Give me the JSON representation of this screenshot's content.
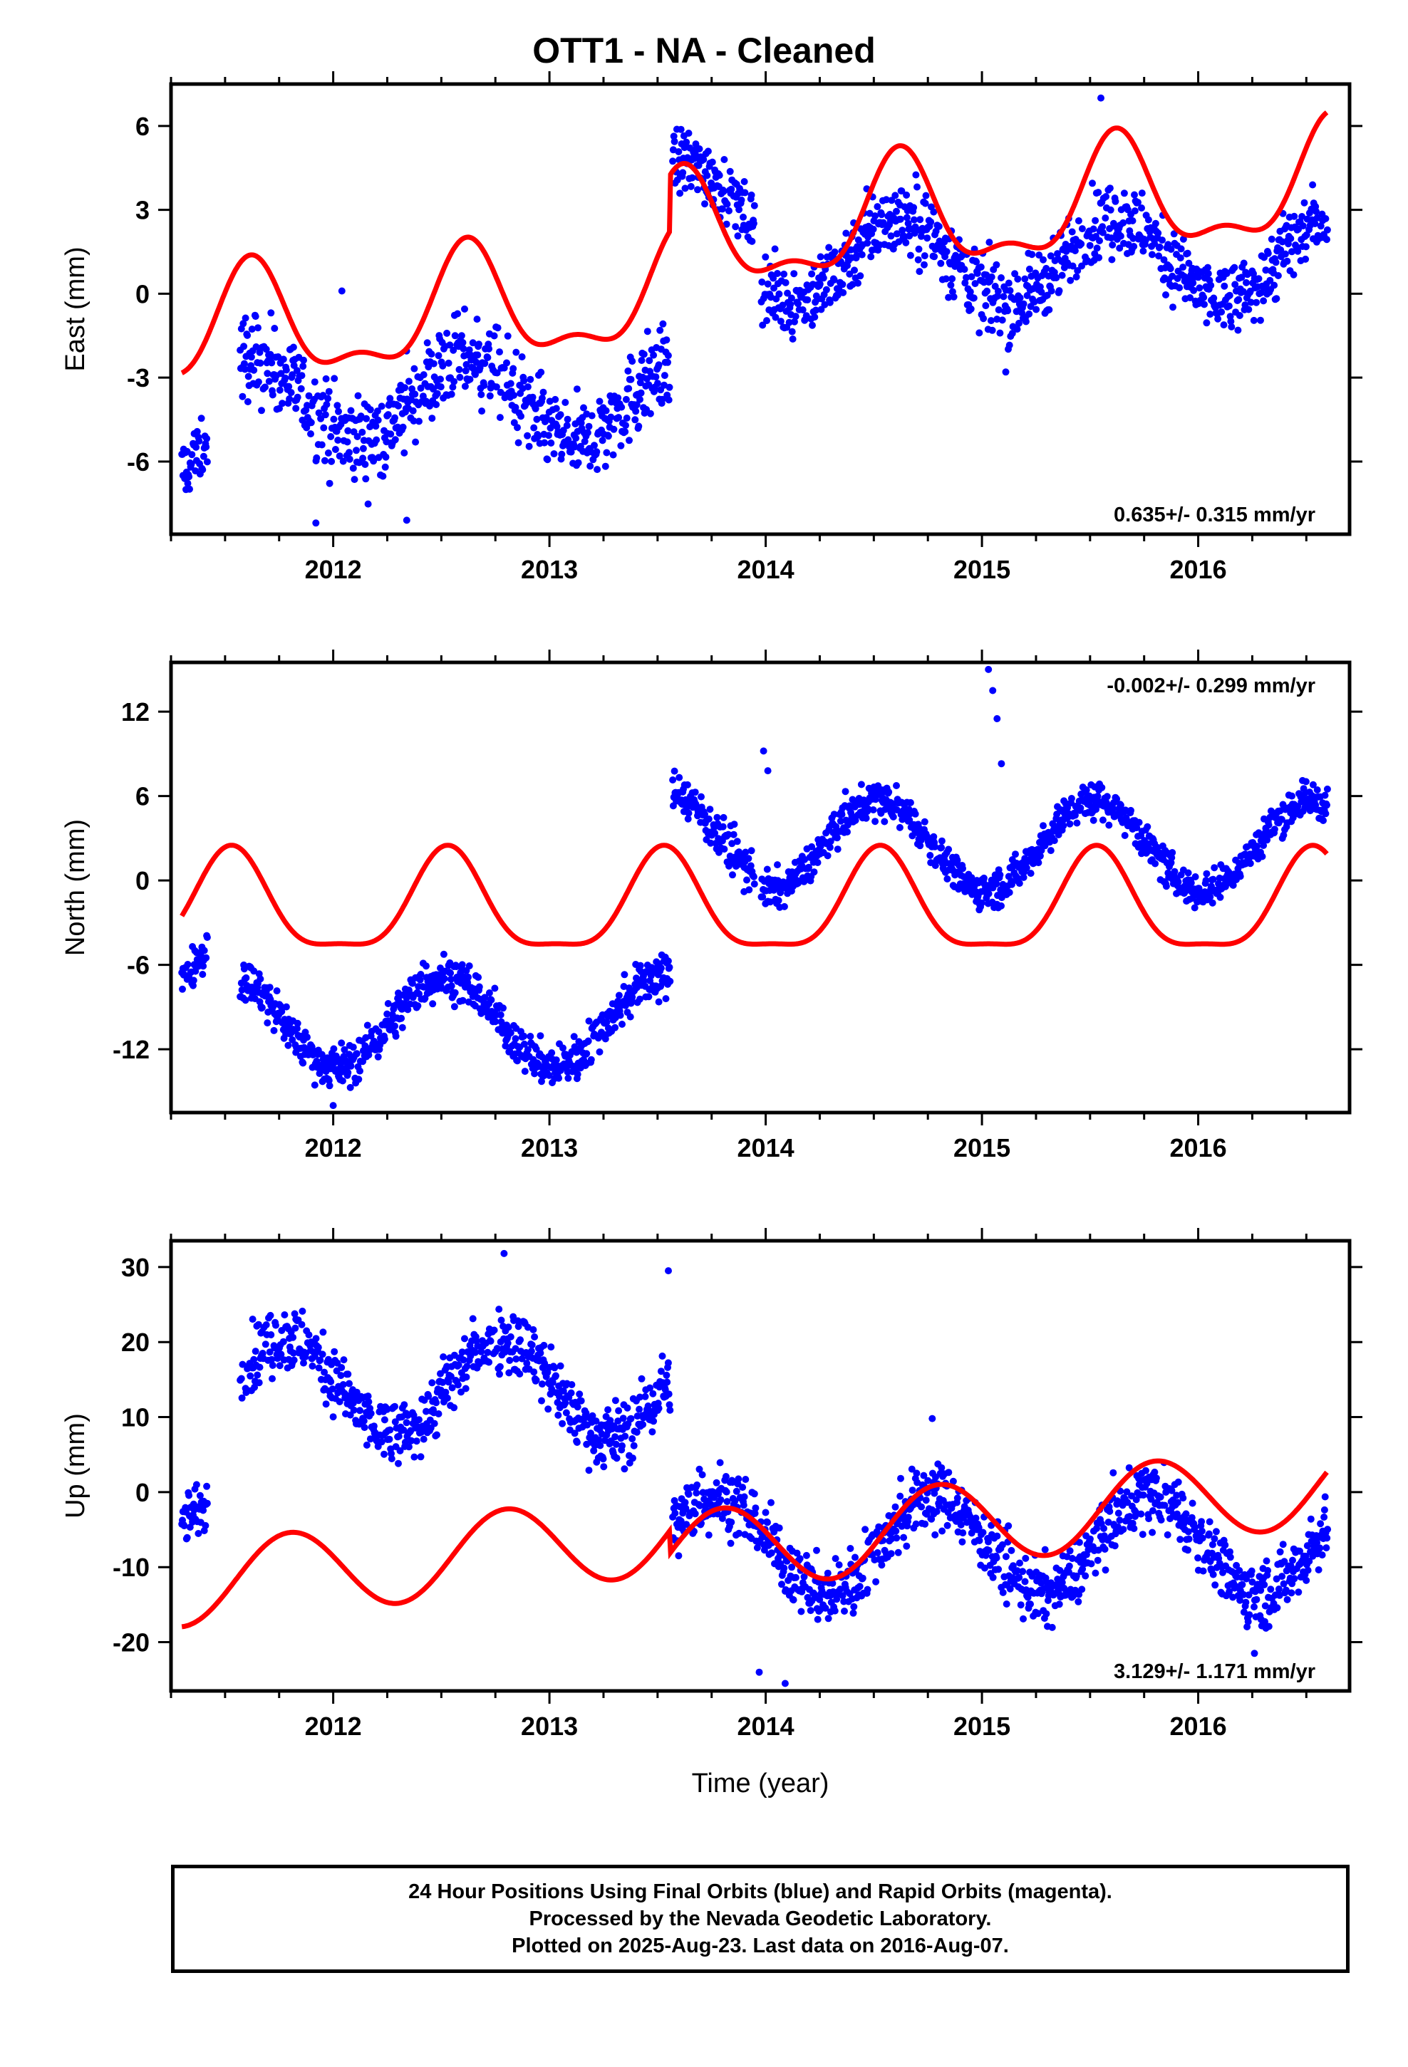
{
  "title": "OTT1  - NA - Cleaned",
  "footer": {
    "line1": "24 Hour Positions Using Final Orbits (blue) and Rapid Orbits (magenta).",
    "line2": "Processed by the Nevada Geodetic Laboratory.",
    "line3": "Plotted on 2025-Aug-23. Last data on 2016-Aug-07."
  },
  "colors": {
    "data_points": "#0000ff",
    "model_curve": "#ff0000",
    "frame": "#000000"
  },
  "chart_data": [
    {
      "type": "scatter",
      "component": "east",
      "ylabel": "East (mm)",
      "xlim": [
        2011.25,
        2016.7
      ],
      "ylim": [
        -8.6,
        7.5
      ],
      "xticks": [
        2012,
        2013,
        2014,
        2015,
        2016
      ],
      "xtick_labels": [
        "2012",
        "2013",
        "2014",
        "2015",
        "2016"
      ],
      "yticks": [
        -6,
        -3,
        0,
        3,
        6
      ],
      "ytick_labels": [
        "-6",
        "-3",
        "0",
        "3",
        "6"
      ],
      "rate_label": "0.635+/- 0.315 mm/yr",
      "rate_position": "bottom-right",
      "data_segments": [
        {
          "x_start": 2011.3,
          "x_end": 2011.42,
          "offset": -5.8,
          "jitter": 1.2
        },
        {
          "x_start": 2011.57,
          "x_end": 2013.56,
          "offset": -3.8,
          "jitter": 1.4
        },
        {
          "x_start": 2013.57,
          "x_end": 2013.95,
          "offset": 3.2,
          "jitter": 1.1
        },
        {
          "x_start": 2013.98,
          "x_end": 2016.6,
          "offset": 1.2,
          "jitter": 1.2
        }
      ],
      "data_seasonal": {
        "amplitude": 1.5,
        "phase_year": 0.62
      },
      "outliers": [
        {
          "x": 2012.04,
          "y": 0.1
        },
        {
          "x": 2015.55,
          "y": 7.0
        },
        {
          "x": 2015.11,
          "y": -2.8
        },
        {
          "x": 2011.92,
          "y": -8.2
        },
        {
          "x": 2012.34,
          "y": -8.1
        }
      ],
      "model": {
        "base": 0.2,
        "trend_mm_yr": 0.635,
        "annual_amp": 1.9,
        "annual_peak": 0.62,
        "semiannual_amp": 0.8
      },
      "model_breaks": [
        {
          "x": 2013.56,
          "jump": 2.0
        }
      ]
    },
    {
      "type": "scatter",
      "component": "north",
      "ylabel": "North (mm)",
      "xlim": [
        2011.25,
        2016.7
      ],
      "ylim": [
        -16.5,
        15.5
      ],
      "xticks": [
        2012,
        2013,
        2014,
        2015,
        2016
      ],
      "xtick_labels": [
        "2012",
        "2013",
        "2014",
        "2015",
        "2016"
      ],
      "yticks": [
        -12,
        -6,
        0,
        6,
        12
      ],
      "ytick_labels": [
        "-12",
        "-6",
        "0",
        "6",
        "12"
      ],
      "rate_label": "-0.002+/- 0.299 mm/yr",
      "rate_position": "top-right",
      "data_segments": [
        {
          "x_start": 2011.3,
          "x_end": 2011.42,
          "offset": -7.5,
          "jitter": 1.3
        },
        {
          "x_start": 2011.57,
          "x_end": 2013.56,
          "offset": -10.0,
          "jitter": 1.4
        },
        {
          "x_start": 2013.57,
          "x_end": 2013.95,
          "offset": 3.5,
          "jitter": 1.4
        },
        {
          "x_start": 2013.98,
          "x_end": 2016.6,
          "offset": 2.5,
          "jitter": 1.2
        }
      ],
      "data_seasonal": {
        "amplitude": 3.2,
        "phase_year": 0.52
      },
      "outliers": [
        {
          "x": 2015.03,
          "y": 15.0
        },
        {
          "x": 2015.05,
          "y": 13.5
        },
        {
          "x": 2015.07,
          "y": 11.5
        },
        {
          "x": 2015.09,
          "y": 8.3
        },
        {
          "x": 2013.99,
          "y": 9.2
        },
        {
          "x": 2014.01,
          "y": 7.8
        },
        {
          "x": 2013.9,
          "y": -0.8
        },
        {
          "x": 2012.0,
          "y": -16.0
        }
      ],
      "model": {
        "base": -2.0,
        "trend_mm_yr": -0.002,
        "annual_amp": 3.5,
        "annual_peak": 0.53,
        "semiannual_amp": 1.0
      },
      "model_breaks": []
    },
    {
      "type": "scatter",
      "component": "up",
      "ylabel": "Up (mm)",
      "xlim": [
        2011.25,
        2016.7
      ],
      "ylim": [
        -26.5,
        33.5
      ],
      "xticks": [
        2012,
        2013,
        2014,
        2015,
        2016
      ],
      "xtick_labels": [
        "2012",
        "2013",
        "2014",
        "2015",
        "2016"
      ],
      "yticks": [
        -20,
        -10,
        0,
        10,
        20,
        30
      ],
      "ytick_labels": [
        "-20",
        "-10",
        "0",
        "10",
        "20",
        "30"
      ],
      "xlabel": "Time (year)",
      "rate_label": "3.129+/- 1.171 mm/yr",
      "rate_position": "bottom-right",
      "data_segments": [
        {
          "x_start": 2011.3,
          "x_end": 2011.42,
          "offset": 3.0,
          "jitter": 3.5
        },
        {
          "x_start": 2011.57,
          "x_end": 2013.56,
          "offset": 14.0,
          "jitter": 4.0
        },
        {
          "x_start": 2013.57,
          "x_end": 2016.6,
          "offset": -7.0,
          "jitter": 4.0
        }
      ],
      "data_seasonal": {
        "amplitude": 6.5,
        "phase_year": 0.78
      },
      "outliers": [
        {
          "x": 2013.55,
          "y": 29.5
        },
        {
          "x": 2012.79,
          "y": 31.8
        },
        {
          "x": 2013.97,
          "y": -24.0
        },
        {
          "x": 2014.09,
          "y": -25.5
        },
        {
          "x": 2016.26,
          "y": -21.5
        },
        {
          "x": 2014.77,
          "y": 9.8
        }
      ],
      "model": {
        "base": -4.0,
        "trend_mm_yr": 3.129,
        "annual_amp": 5.5,
        "annual_peak": 0.8,
        "semiannual_amp": 0.0
      },
      "model_breaks": [
        {
          "x": 2013.56,
          "jump": -3.0
        }
      ]
    }
  ]
}
